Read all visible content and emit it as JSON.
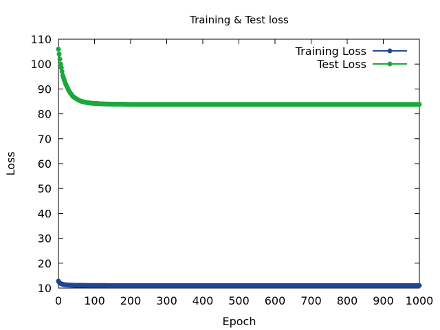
{
  "chart_data": {
    "type": "line",
    "title": "Training & Test loss",
    "xlabel": "Epoch",
    "ylabel": "Loss",
    "xlim": [
      0,
      1000
    ],
    "ylim": [
      10,
      110
    ],
    "xticks": [
      0,
      100,
      200,
      300,
      400,
      500,
      600,
      700,
      800,
      900,
      1000
    ],
    "yticks": [
      10,
      20,
      30,
      40,
      50,
      60,
      70,
      80,
      90,
      100,
      110
    ],
    "grid": false,
    "legend_position": "top-right",
    "series": [
      {
        "name": "Training Loss",
        "color": "#1f4795",
        "x": [
          0,
          1,
          2,
          3,
          4,
          5,
          6,
          8,
          10,
          12,
          15,
          20,
          25,
          30,
          40,
          50,
          60,
          80,
          100,
          150,
          200,
          300,
          400,
          500,
          600,
          700,
          800,
          900,
          1000
        ],
        "y": [
          12.8,
          12.5,
          12.3,
          12.1,
          12.0,
          11.9,
          11.8,
          11.7,
          11.6,
          11.5,
          11.4,
          11.3,
          11.25,
          11.2,
          11.15,
          11.1,
          11.1,
          11.05,
          11.05,
          11.0,
          11.0,
          11.0,
          11.0,
          11.0,
          11.0,
          11.0,
          11.0,
          11.0,
          11.0
        ]
      },
      {
        "name": "Test Loss",
        "color": "#1aa83a",
        "x": [
          0,
          1,
          2,
          3,
          4,
          5,
          6,
          8,
          10,
          12,
          15,
          20,
          25,
          30,
          40,
          50,
          60,
          70,
          80,
          90,
          100,
          120,
          150,
          200,
          300,
          400,
          500,
          600,
          700,
          800,
          900,
          1000
        ],
        "y": [
          106,
          105,
          104,
          103,
          102,
          101,
          100,
          98.5,
          97,
          95.5,
          94,
          92,
          90.5,
          89,
          87,
          86,
          85.2,
          84.8,
          84.5,
          84.3,
          84.2,
          84.0,
          83.9,
          83.8,
          83.8,
          83.8,
          83.8,
          83.8,
          83.8,
          83.8,
          83.8,
          83.8
        ]
      }
    ]
  }
}
